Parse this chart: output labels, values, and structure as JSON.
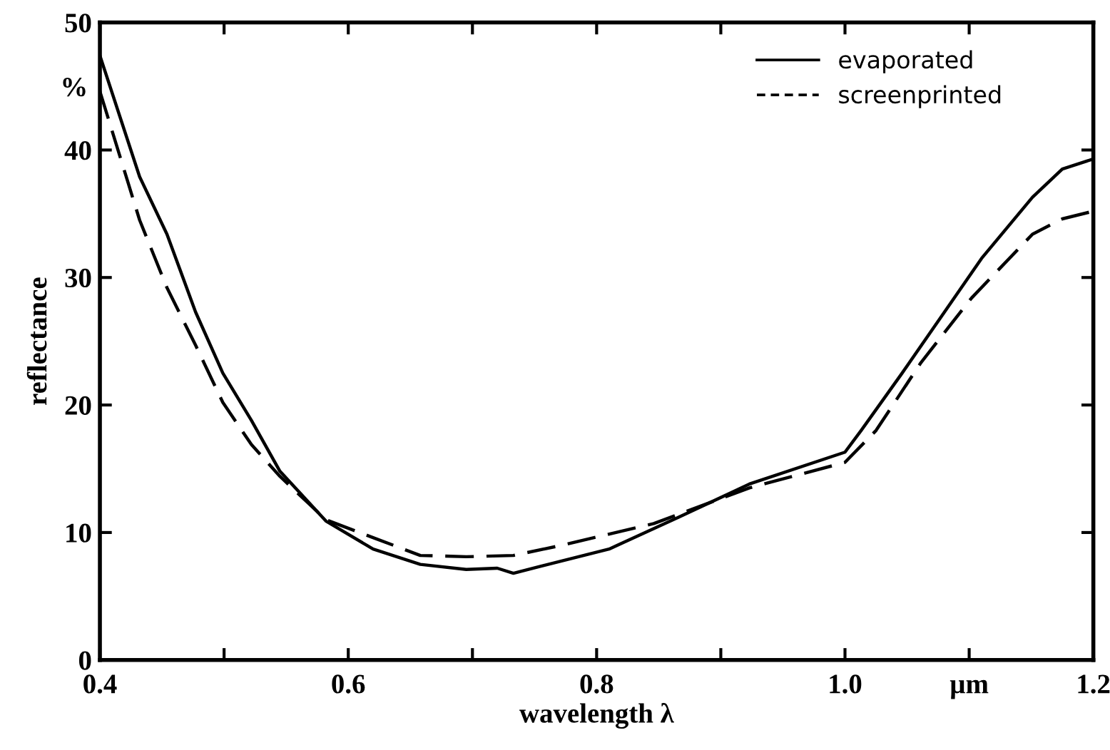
{
  "chart_data": {
    "type": "line",
    "xlabel": "wavelength λ",
    "ylabel": "reflectance",
    "annotations": [
      "%"
    ],
    "xlim": [
      0.4,
      1.2
    ],
    "ylim": [
      0,
      50
    ],
    "xticks": [
      {
        "value": 0.4,
        "label": "0.4"
      },
      {
        "value": 0.5,
        "label": null
      },
      {
        "value": 0.6,
        "label": "0.6"
      },
      {
        "value": 0.7,
        "label": null
      },
      {
        "value": 0.8,
        "label": "0.8"
      },
      {
        "value": 0.9,
        "label": null
      },
      {
        "value": 1.0,
        "label": "1.0"
      },
      {
        "value": 1.1,
        "label": "µm"
      },
      {
        "value": 1.2,
        "label": "1.2"
      }
    ],
    "yticks": [
      0,
      10,
      20,
      30,
      40,
      50
    ],
    "grid": false,
    "legend": "top right",
    "marker": "none",
    "series": [
      {
        "name": "evaporated",
        "color": "#000000",
        "line_style": "solid",
        "x": [
          0.4,
          0.432,
          0.454,
          0.477,
          0.499,
          0.522,
          0.545,
          0.582,
          0.62,
          0.658,
          0.695,
          0.72,
          0.733,
          0.753,
          0.81,
          0.866,
          0.923,
          1.0,
          1.013,
          1.046,
          1.078,
          1.11,
          1.151,
          1.175,
          1.2
        ],
        "values": [
          47.4,
          37.9,
          33.4,
          27.3,
          22.5,
          18.8,
          14.8,
          10.9,
          8.7,
          7.5,
          7.1,
          7.2,
          6.8,
          7.3,
          8.7,
          11.2,
          13.8,
          16.3,
          18.0,
          22.5,
          27.0,
          31.5,
          36.3,
          38.5,
          39.3
        ]
      },
      {
        "name": "screenprinted",
        "color": "#000000",
        "line_style": "dashed",
        "x": [
          0.4,
          0.432,
          0.454,
          0.477,
          0.499,
          0.522,
          0.545,
          0.582,
          0.62,
          0.658,
          0.695,
          0.733,
          0.772,
          0.846,
          0.923,
          1.0,
          1.025,
          1.061,
          1.102,
          1.151,
          1.175,
          1.2
        ],
        "values": [
          44.6,
          34.5,
          29.2,
          24.7,
          20.2,
          16.9,
          14.4,
          11.0,
          9.6,
          8.2,
          8.1,
          8.2,
          9.0,
          10.7,
          13.5,
          15.5,
          18.0,
          23.3,
          28.4,
          33.4,
          34.6,
          35.2
        ]
      }
    ]
  }
}
